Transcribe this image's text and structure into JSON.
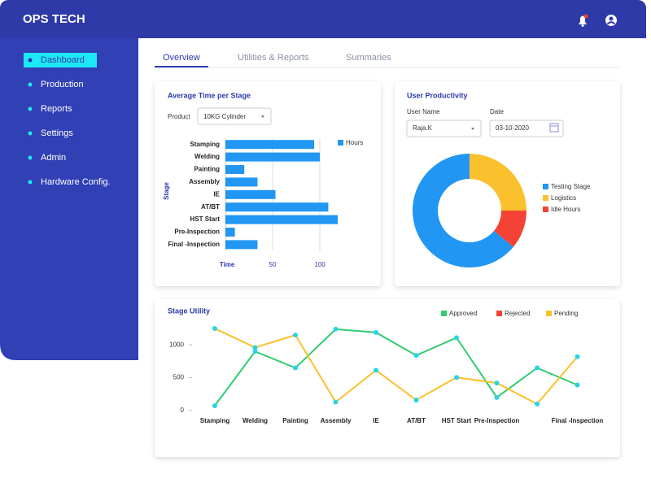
{
  "header": {
    "brand": "OPS TECH"
  },
  "sidebar": {
    "items": [
      "Dashboard",
      "Production",
      "Reports",
      "Settings",
      "Admin",
      "Hardware Config."
    ],
    "active": 0
  },
  "tabs": {
    "items": [
      "Overview",
      "Utilities & Reports",
      "Summaries"
    ],
    "active": 0
  },
  "filters": {
    "product_label": "Product",
    "product": "10KG Cylinder",
    "user_label": "User Name",
    "user": "Raja.K",
    "date_label": "Date",
    "date": "03-10-2020"
  },
  "chart_data": [
    {
      "type": "bar",
      "orientation": "horizontal",
      "title": "Average Time per Stage",
      "categories": [
        "Stamping",
        "Welding",
        "Painting",
        "Assembly",
        "IE",
        "AT/BT",
        "HST Start",
        "Pre-Inspection",
        "Final -Inspection"
      ],
      "series": [
        {
          "name": "Hours",
          "color": "#2196f3",
          "values": [
            94,
            100,
            20,
            34,
            53,
            109,
            119,
            10,
            34
          ]
        }
      ],
      "xlabel": "Time",
      "ylabel": "Stage",
      "xlim": [
        0,
        125
      ],
      "xticks": [
        50,
        100
      ],
      "grid": true,
      "legend": "right"
    },
    {
      "type": "pie",
      "donut": true,
      "title": "User Productivity",
      "categories": [
        "Testing Stage",
        "Logistics",
        "Idle Hours"
      ],
      "values": [
        64,
        25,
        11
      ],
      "colors": [
        "#2196f3",
        "#fbc02d",
        "#f44336"
      ],
      "legend": "right"
    },
    {
      "type": "line",
      "title": "Stage Utility",
      "categories": [
        "Stamping",
        "Welding",
        "Painting",
        "Assembly",
        "IE",
        "AT/BT",
        "HST Start",
        "Pre-Inspection",
        null,
        "Final -Inspection"
      ],
      "series": [
        {
          "name": "Approved",
          "color": "#2ecc71",
          "values": [
            74,
            900,
            650,
            1240,
            1190,
            840,
            1110,
            200,
            650,
            390
          ]
        },
        {
          "name": "Rejected",
          "color": "#f44336",
          "values": [
            null,
            null,
            null,
            null,
            null,
            null,
            null,
            null,
            null,
            null
          ]
        },
        {
          "name": "Pending",
          "color": "#fbc02d",
          "values": [
            1250,
            960,
            1150,
            130,
            615,
            160,
            505,
            420,
            100,
            820
          ]
        }
      ],
      "ylim": [
        0,
        1300
      ],
      "yticks": [
        0,
        500,
        1000
      ],
      "marker_color": "#29d3e6",
      "legend": "top-right"
    }
  ]
}
